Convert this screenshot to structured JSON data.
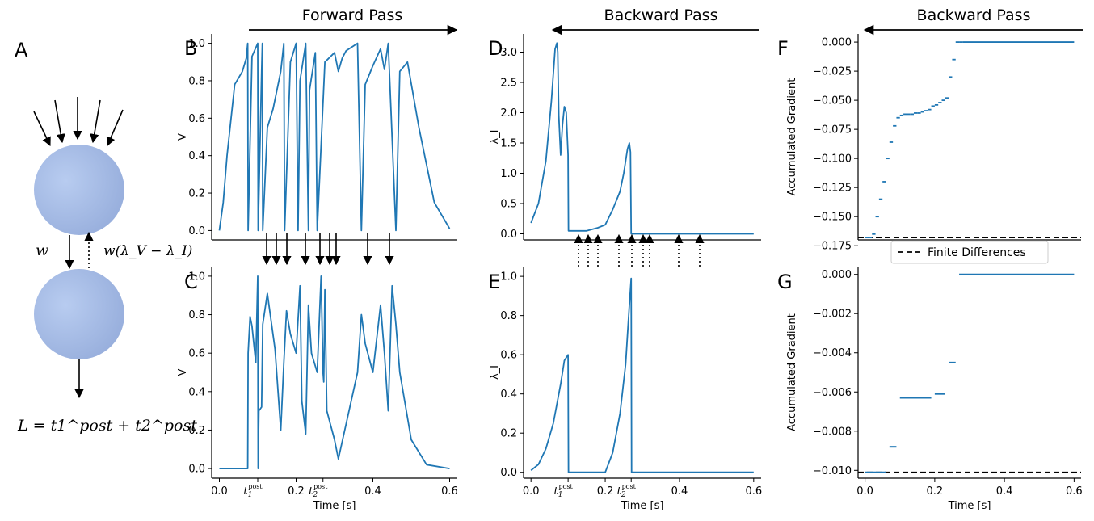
{
  "panel_letters": {
    "A": "A",
    "B": "B",
    "C": "C",
    "D": "D",
    "E": "E",
    "F": "F",
    "G": "G"
  },
  "sections": {
    "forward": "Forward Pass",
    "backward_d": "Backward Pass",
    "backward_f": "Backward Pass"
  },
  "diagram": {
    "weight_label": "w",
    "backward_weight_label": "w(λ_V − λ_I)",
    "loss_label": "L = t1^post + t2^post"
  },
  "colors": {
    "line": "#1f77b4",
    "neuron": "#a9c1ea",
    "dashed": "#000000"
  },
  "spike_markers": {
    "forward_arrows": 9,
    "backward_arrows": 9
  },
  "chart_data": [
    {
      "id": "B",
      "type": "line",
      "ylabel": "V",
      "xlabel": "",
      "xlim": [
        -0.02,
        0.62
      ],
      "ylim": [
        -0.05,
        1.05
      ],
      "yticks": [
        0.0,
        0.2,
        0.4,
        0.6,
        0.8,
        1.0
      ],
      "ytick_labels": [
        "0.0",
        "0.2",
        "0.4",
        "0.6",
        "0.8",
        "1.0"
      ],
      "x": [
        0.0,
        0.01,
        0.02,
        0.04,
        0.06,
        0.07,
        0.074,
        0.075,
        0.085,
        0.1,
        0.101,
        0.11,
        0.112,
        0.113,
        0.125,
        0.14,
        0.16,
        0.168,
        0.17,
        0.185,
        0.2,
        0.205,
        0.21,
        0.225,
        0.232,
        0.235,
        0.25,
        0.255,
        0.275,
        0.3,
        0.31,
        0.32,
        0.33,
        0.36,
        0.37,
        0.38,
        0.4,
        0.42,
        0.43,
        0.44,
        0.46,
        0.47,
        0.49,
        0.52,
        0.56,
        0.6
      ],
      "y": [
        0.0,
        0.15,
        0.4,
        0.78,
        0.85,
        0.92,
        1.0,
        0.0,
        0.93,
        1.0,
        0.0,
        0.85,
        1.0,
        0.0,
        0.55,
        0.65,
        0.85,
        1.0,
        0.0,
        0.9,
        1.0,
        0.0,
        0.8,
        1.0,
        0.0,
        0.75,
        0.95,
        0.0,
        0.9,
        0.95,
        0.85,
        0.92,
        0.96,
        1.0,
        0.0,
        0.78,
        0.88,
        0.97,
        0.86,
        1.0,
        0.0,
        0.85,
        0.9,
        0.55,
        0.15,
        0.01
      ]
    },
    {
      "id": "C",
      "type": "line",
      "ylabel": "V",
      "xlabel": "Time [s]",
      "xlim": [
        -0.02,
        0.62
      ],
      "ylim": [
        -0.05,
        1.05
      ],
      "xticks": [
        0.0,
        0.2,
        0.4,
        0.6
      ],
      "xtick_labels": [
        "0.0",
        "0.2",
        "0.4",
        "0.6"
      ],
      "extra_xticks": [
        0.1,
        0.27
      ],
      "extra_xtick_labels": [
        "t1post",
        "t2post"
      ],
      "yticks": [
        0.0,
        0.2,
        0.4,
        0.6,
        0.8,
        1.0
      ],
      "ytick_labels": [
        "0.0",
        "0.2",
        "0.4",
        "0.6",
        "0.8",
        "1.0"
      ],
      "x": [
        0.0,
        0.074,
        0.075,
        0.08,
        0.085,
        0.095,
        0.1,
        0.101,
        0.103,
        0.11,
        0.113,
        0.125,
        0.145,
        0.16,
        0.168,
        0.175,
        0.185,
        0.2,
        0.21,
        0.215,
        0.225,
        0.232,
        0.24,
        0.255,
        0.265,
        0.27,
        0.272,
        0.275,
        0.28,
        0.3,
        0.31,
        0.36,
        0.37,
        0.38,
        0.4,
        0.42,
        0.43,
        0.44,
        0.45,
        0.46,
        0.47,
        0.5,
        0.54,
        0.6
      ],
      "y": [
        0.0,
        0.0,
        0.6,
        0.79,
        0.74,
        0.55,
        1.0,
        0.0,
        0.3,
        0.32,
        0.75,
        0.91,
        0.62,
        0.2,
        0.55,
        0.82,
        0.7,
        0.6,
        0.95,
        0.35,
        0.18,
        0.85,
        0.6,
        0.5,
        1.0,
        0.5,
        0.45,
        0.93,
        0.3,
        0.15,
        0.05,
        0.5,
        0.8,
        0.65,
        0.5,
        0.85,
        0.6,
        0.3,
        0.95,
        0.75,
        0.5,
        0.15,
        0.02,
        0.0
      ]
    },
    {
      "id": "D",
      "type": "line",
      "ylabel": "λ_I",
      "xlabel": "",
      "xlim": [
        -0.02,
        0.62
      ],
      "ylim": [
        -0.1,
        3.3
      ],
      "yticks": [
        0.0,
        0.5,
        1.0,
        1.5,
        2.0,
        2.5,
        3.0
      ],
      "ytick_labels": [
        "0.0",
        "0.5",
        "1.0",
        "1.5",
        "2.0",
        "2.5",
        "3.0"
      ],
      "x": [
        0.0,
        0.02,
        0.04,
        0.055,
        0.065,
        0.07,
        0.072,
        0.075,
        0.08,
        0.085,
        0.09,
        0.095,
        0.1,
        0.101,
        0.12,
        0.15,
        0.18,
        0.2,
        0.22,
        0.24,
        0.25,
        0.26,
        0.265,
        0.268,
        0.27,
        0.6
      ],
      "y": [
        0.18,
        0.5,
        1.2,
        2.2,
        3.05,
        3.15,
        3.0,
        1.95,
        1.3,
        1.8,
        2.1,
        2.0,
        1.3,
        0.05,
        0.05,
        0.05,
        0.1,
        0.15,
        0.4,
        0.7,
        1.0,
        1.4,
        1.5,
        1.35,
        0.0,
        0.0
      ]
    },
    {
      "id": "E",
      "type": "line",
      "ylabel": "λ_I",
      "xlabel": "Time [s]",
      "xlim": [
        -0.02,
        0.62
      ],
      "ylim": [
        -0.03,
        1.05
      ],
      "xticks": [
        0.0,
        0.2,
        0.4,
        0.6
      ],
      "xtick_labels": [
        "0.0",
        "0.2",
        "0.4",
        "0.6"
      ],
      "extra_xticks": [
        0.1,
        0.27
      ],
      "extra_xtick_labels": [
        "t1post",
        "t2post"
      ],
      "yticks": [
        0.0,
        0.2,
        0.4,
        0.6,
        0.8,
        1.0
      ],
      "ytick_labels": [
        "0.0",
        "0.2",
        "0.4",
        "0.6",
        "0.8",
        "1.0"
      ],
      "x": [
        0.0,
        0.02,
        0.04,
        0.06,
        0.08,
        0.09,
        0.1,
        0.101,
        0.2,
        0.22,
        0.24,
        0.255,
        0.265,
        0.27,
        0.271,
        0.6
      ],
      "y": [
        0.01,
        0.04,
        0.12,
        0.25,
        0.45,
        0.57,
        0.6,
        0.0,
        0.0,
        0.1,
        0.3,
        0.55,
        0.85,
        0.99,
        0.0,
        0.0
      ]
    },
    {
      "id": "F",
      "type": "step",
      "ylabel": "Accumulated Gradient",
      "xlabel": "",
      "xlim": [
        -0.02,
        0.62
      ],
      "ylim": [
        -0.17,
        0.007
      ],
      "yticks": [
        0.0,
        -0.025,
        -0.05,
        -0.075,
        -0.1,
        -0.125,
        -0.15,
        -0.175
      ],
      "ytick_labels": [
        "0.000",
        "−0.025",
        "−0.050",
        "−0.075",
        "−0.100",
        "−0.125",
        "−0.150",
        "−0.175"
      ],
      "x": [
        0.0,
        0.01,
        0.02,
        0.03,
        0.04,
        0.05,
        0.06,
        0.07,
        0.08,
        0.09,
        0.1,
        0.11,
        0.12,
        0.13,
        0.14,
        0.15,
        0.16,
        0.17,
        0.18,
        0.19,
        0.2,
        0.21,
        0.22,
        0.23,
        0.24,
        0.25,
        0.26,
        0.27,
        0.28,
        0.6
      ],
      "y": [
        -0.168,
        -0.168,
        -0.165,
        -0.15,
        -0.135,
        -0.12,
        -0.1,
        -0.086,
        -0.072,
        -0.065,
        -0.063,
        -0.062,
        -0.062,
        -0.062,
        -0.061,
        -0.061,
        -0.06,
        -0.059,
        -0.058,
        -0.055,
        -0.054,
        -0.052,
        -0.05,
        -0.048,
        -0.03,
        -0.015,
        0.0,
        0.0,
        0.0,
        0.0
      ],
      "reference_line": {
        "y": -0.168,
        "style": "dashed"
      },
      "legend": {
        "label": "Finite Differences",
        "location": "below"
      }
    },
    {
      "id": "G",
      "type": "step",
      "ylabel": "Accumulated Gradient",
      "xlabel": "Time [s]",
      "xlim": [
        -0.02,
        0.62
      ],
      "ylim": [
        -0.0104,
        0.0004
      ],
      "xticks": [
        0.0,
        0.2,
        0.4,
        0.6
      ],
      "xtick_labels": [
        "0.0",
        "0.2",
        "0.4",
        "0.6"
      ],
      "yticks": [
        0.0,
        -0.002,
        -0.004,
        -0.006,
        -0.008,
        -0.01
      ],
      "ytick_labels": [
        "0.000",
        "−0.002",
        "−0.004",
        "−0.006",
        "−0.008",
        "−0.010"
      ],
      "segments": [
        {
          "x0": 0.0,
          "x1": 0.06,
          "y": -0.0101
        },
        {
          "x0": 0.07,
          "x1": 0.09,
          "y": -0.0088
        },
        {
          "x0": 0.1,
          "x1": 0.19,
          "y": -0.0063
        },
        {
          "x0": 0.2,
          "x1": 0.23,
          "y": -0.0061
        },
        {
          "x0": 0.24,
          "x1": 0.26,
          "y": -0.0045
        },
        {
          "x0": 0.27,
          "x1": 0.6,
          "y": 0.0
        }
      ],
      "reference_line": {
        "y": -0.0101,
        "style": "dashed"
      }
    }
  ]
}
